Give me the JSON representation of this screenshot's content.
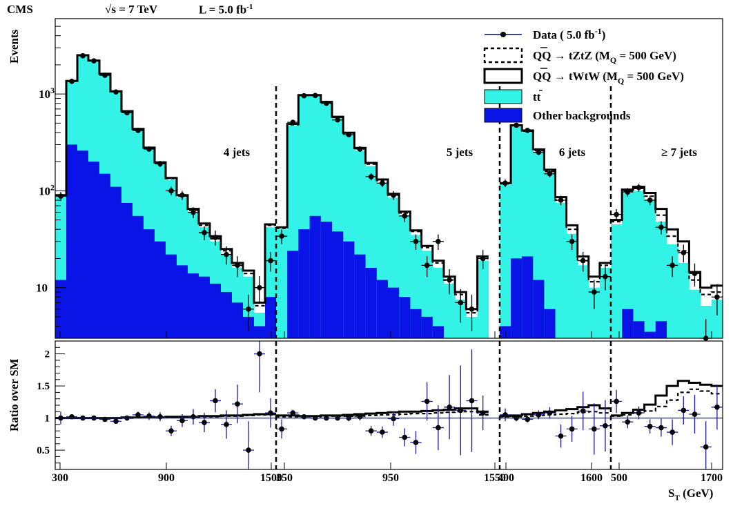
{
  "header": {
    "experiment": "CMS",
    "energy": "√s = 7 TeV",
    "lumi": "L = 5.0 fb",
    "lumi_sup": "-1"
  },
  "chart_data": {
    "type": "histogram",
    "top_panel": {
      "ylabel": "Events",
      "yscale": "log",
      "ylim": [
        3,
        6000
      ],
      "yticks": [
        {
          "value": 10,
          "label": "10"
        },
        {
          "value": 100,
          "label": "10",
          "sup": "2"
        },
        {
          "value": 1000,
          "label": "10",
          "sup": "3"
        }
      ]
    },
    "bottom_panel": {
      "ylabel": "Ratio over SM",
      "ylim": [
        0.2,
        2.2
      ],
      "yticks": [
        "0.5",
        "1",
        "1.5",
        "2"
      ]
    },
    "xlabel": "S",
    "xlabel_sub": "T",
    "xlabel_unit": " (GeV)",
    "xtick_labels": [
      "300",
      "900",
      "1500",
      "350",
      "950",
      "1550",
      "400",
      "1600",
      "500",
      "1700"
    ],
    "legend": {
      "placement": "top-right",
      "data": {
        "label": "Data ( 5.0 fb",
        "sup": "-1",
        "suffix": ")",
        "color": "#000080"
      },
      "tztz": {
        "label": "QQ → tZtZ (M",
        "sub": "Q",
        "suffix": " = 500 GeV)",
        "style": "dashed"
      },
      "twtw": {
        "label": "QQ → tWtW (M",
        "sub": "Q",
        "suffix": " = 500 GeV)",
        "style": "solid"
      },
      "ttbar": {
        "label": "tt",
        "color": "#33f2e6"
      },
      "other": {
        "label": "Other backgrounds",
        "color": "#0a14e6"
      }
    },
    "colors": {
      "ttbar": "#33f2e6",
      "other": "#0a14e6",
      "data": "#000000",
      "error": "#1a1aa6"
    },
    "regions": [
      {
        "label": "4 jets",
        "bins": 20,
        "other": [
          12,
          300,
          260,
          200,
          150,
          110,
          75,
          55,
          40,
          30,
          22,
          17,
          14,
          13,
          11,
          9,
          7,
          5,
          4,
          8
        ],
        "total": [
          90,
          1350,
          2500,
          2200,
          1600,
          1050,
          650,
          420,
          270,
          190,
          130,
          85,
          60,
          42,
          30,
          22,
          16,
          13,
          5.5,
          42
        ],
        "tztz": [
          90,
          1360,
          2510,
          2210,
          1610,
          1060,
          660,
          430,
          276,
          194,
          134,
          88,
          63,
          44,
          32,
          24,
          17,
          14,
          6.5,
          44
        ],
        "twtw": [
          90,
          1365,
          2515,
          2215,
          1615,
          1065,
          665,
          435,
          279,
          197,
          136,
          90,
          65,
          46,
          34,
          25,
          18,
          15,
          7,
          45
        ],
        "data": [
          88,
          1350,
          2480,
          2200,
          1560,
          1050,
          640,
          420,
          270,
          190,
          100,
          90,
          60,
          37,
          33,
          22,
          17,
          6,
          10,
          19
        ],
        "ratio": [
          1.0,
          1.02,
          1.0,
          1.0,
          0.98,
          0.95,
          1.0,
          1.05,
          1.03,
          1.02,
          0.8,
          0.96,
          1.02,
          0.93,
          1.27,
          0.9,
          1.22,
          0.5,
          2.0,
          1.08
        ],
        "ratio_err": [
          0.1,
          0.03,
          0.02,
          0.02,
          0.03,
          0.03,
          0.04,
          0.05,
          0.06,
          0.07,
          0.08,
          0.1,
          0.12,
          0.15,
          0.18,
          0.22,
          0.3,
          0.45,
          0.6,
          0.23
        ],
        "tztz_ratio": [
          1.0,
          1.0,
          1.0,
          1.0,
          1.0,
          1.0,
          1.0,
          1.01,
          1.01,
          1.01,
          1.01,
          1.01,
          1.02,
          1.02,
          1.02,
          1.03,
          1.03,
          1.04,
          1.05,
          1.05
        ],
        "twtw_ratio": [
          1.0,
          1.0,
          1.0,
          1.0,
          1.0,
          1.0,
          1.01,
          1.01,
          1.01,
          1.01,
          1.02,
          1.02,
          1.02,
          1.03,
          1.03,
          1.04,
          1.04,
          1.05,
          1.06,
          1.06
        ]
      },
      {
        "label": "5 jets",
        "bins": 20,
        "other": [
          0,
          24,
          40,
          55,
          48,
          38,
          30,
          22,
          16,
          12,
          10,
          8,
          6,
          5,
          4,
          0,
          0,
          0,
          0,
          0
        ],
        "total": [
          40,
          470,
          950,
          950,
          800,
          560,
          380,
          260,
          180,
          120,
          85,
          55,
          35,
          24,
          16,
          11,
          7.5,
          5,
          19,
          0
        ],
        "tztz": [
          41,
          482,
          968,
          968,
          820,
          574,
          392,
          271,
          189,
          127,
          90,
          59,
          38,
          26,
          18,
          12,
          8.5,
          5.5,
          20,
          0
        ],
        "twtw": [
          42,
          490,
          975,
          975,
          828,
          582,
          398,
          277,
          194,
          131,
          93,
          61,
          39,
          27,
          19,
          13,
          9,
          6,
          21,
          0
        ],
        "data": [
          34,
          510,
          960,
          965,
          800,
          540,
          380,
          270,
          140,
          120,
          90,
          55,
          30,
          17,
          30,
          12,
          7,
          6,
          20,
          0
        ],
        "ratio": [
          0.83,
          1.08,
          1.02,
          1.0,
          1.0,
          1.0,
          1.0,
          1.02,
          0.8,
          0.78,
          0.99,
          0.7,
          0.62,
          1.26,
          0.85,
          1.17,
          1.12,
          1.27,
          1.08,
          0
        ],
        "ratio_err": [
          0.15,
          0.05,
          0.03,
          0.03,
          0.04,
          0.04,
          0.05,
          0.06,
          0.08,
          0.09,
          0.11,
          0.14,
          0.18,
          0.3,
          0.35,
          0.5,
          0.7,
          0.8,
          0.27,
          0
        ],
        "tztz_ratio": [
          1.02,
          1.02,
          1.02,
          1.02,
          1.03,
          1.03,
          1.03,
          1.04,
          1.04,
          1.05,
          1.05,
          1.06,
          1.07,
          1.07,
          1.08,
          1.09,
          1.1,
          1.1,
          1.05,
          0
        ],
        "twtw_ratio": [
          1.04,
          1.04,
          1.03,
          1.03,
          1.04,
          1.04,
          1.05,
          1.06,
          1.07,
          1.08,
          1.09,
          1.1,
          1.1,
          1.11,
          1.12,
          1.13,
          1.15,
          1.15,
          1.1,
          0
        ]
      },
      {
        "label": "6 jets",
        "bins": 10,
        "other": [
          4,
          20,
          21,
          12,
          6,
          0,
          0,
          0,
          0,
          0
        ],
        "total": [
          115,
          460,
          400,
          250,
          150,
          75,
          36,
          17,
          10,
          16
        ],
        "tztz": [
          118,
          470,
          412,
          260,
          158,
          80,
          40,
          19,
          11.5,
          17
        ],
        "twtw": [
          120,
          475,
          420,
          268,
          165,
          86,
          44,
          21,
          13,
          18
        ],
        "data": [
          120,
          475,
          420,
          250,
          150,
          80,
          30,
          19,
          9,
          13
        ],
        "ratio": [
          1.05,
          1.0,
          0.98,
          1.05,
          1.08,
          0.72,
          0.83,
          1.11,
          0.83,
          0.88
        ],
        "ratio_err": [
          0.1,
          0.05,
          0.05,
          0.07,
          0.09,
          0.18,
          0.2,
          0.3,
          0.4,
          0.4
        ],
        "tztz_ratio": [
          1.02,
          1.02,
          1.03,
          1.04,
          1.05,
          1.06,
          1.07,
          1.09,
          1.1,
          1.08
        ],
        "twtw_ratio": [
          1.03,
          1.04,
          1.06,
          1.08,
          1.1,
          1.12,
          1.14,
          1.17,
          1.2,
          1.15
        ]
      },
      {
        "label": "≥ 7 jets",
        "bins": 10,
        "other": [
          2.5,
          6,
          4.5,
          3.5,
          4.5,
          0,
          0,
          0,
          0,
          0
        ],
        "total": [
          45,
          95,
          100,
          80,
          48,
          28,
          18,
          9.5,
          6.5,
          7.5
        ],
        "tztz": [
          48,
          100,
          106,
          88,
          56,
          34,
          24,
          12,
          8.5,
          9
        ],
        "twtw": [
          50,
          103,
          110,
          95,
          65,
          40,
          30,
          14.5,
          10,
          10.5
        ],
        "data": [
          57,
          97,
          108,
          80,
          42,
          17,
          23,
          14,
          3,
          8
        ],
        "ratio": [
          1.26,
          0.94,
          1.08,
          0.87,
          0.85,
          0.78,
          1.12,
          1.06,
          0.55,
          1.17
        ],
        "ratio_err": [
          0.18,
          0.1,
          0.1,
          0.11,
          0.14,
          0.2,
          0.22,
          0.3,
          0.4,
          0.35
        ],
        "tztz_ratio": [
          1.03,
          1.05,
          1.08,
          1.11,
          1.18,
          1.28,
          1.4,
          1.45,
          1.42,
          1.38
        ],
        "twtw_ratio": [
          1.04,
          1.08,
          1.13,
          1.21,
          1.35,
          1.5,
          1.58,
          1.55,
          1.52,
          1.5
        ]
      }
    ]
  }
}
